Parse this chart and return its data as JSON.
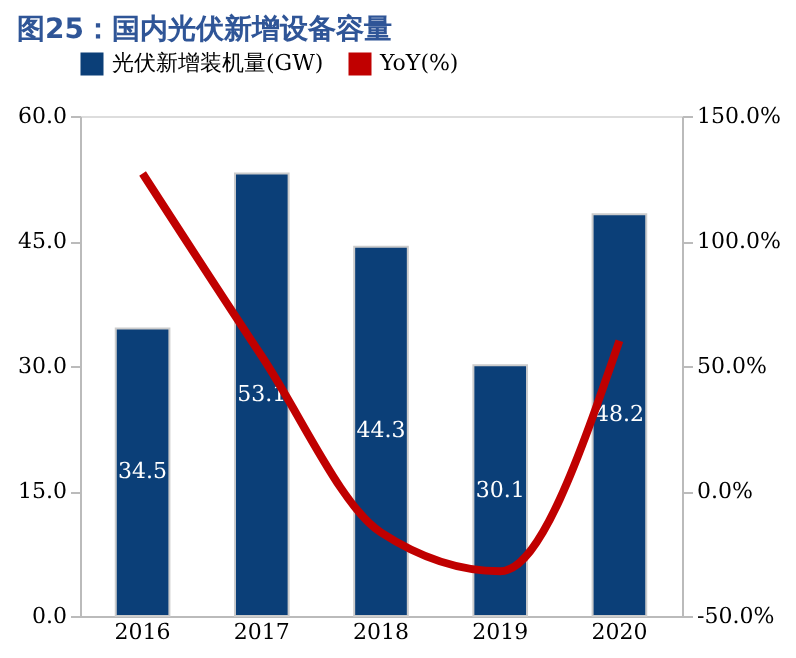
{
  "chart_data": {
    "type": "bar",
    "title": "图25：国内光伏新增设备容量",
    "categories": [
      "2016",
      "2017",
      "2018",
      "2019",
      "2020"
    ],
    "series": [
      {
        "name": "光伏新增装机量(GW)",
        "color": "#0b3f78",
        "values": [
          34.5,
          53.1,
          44.3,
          30.1,
          48.2
        ]
      },
      {
        "name": "YoY(%)",
        "type": "line",
        "axis": "y2",
        "color": "#c00000",
        "values": [
          127,
          53.9,
          -16.6,
          -32.1,
          60.1
        ]
      }
    ],
    "ylim": [
      0,
      60
    ],
    "yticks": [
      {
        "value": 0,
        "label": "0.0"
      },
      {
        "value": 15,
        "label": "15.0"
      },
      {
        "value": 30,
        "label": "30.0"
      },
      {
        "value": 45,
        "label": "45.0"
      },
      {
        "value": 60,
        "label": "60.0"
      }
    ],
    "y2lim": [
      -50,
      150
    ],
    "y2ticks": [
      {
        "value": -50,
        "label": "-50.0%"
      },
      {
        "value": 0,
        "label": "0.0%"
      },
      {
        "value": 50,
        "label": "50.0%"
      },
      {
        "value": 100,
        "label": "100.0%"
      },
      {
        "value": 150,
        "label": "150.0%"
      }
    ],
    "value_labels": [
      "34.5",
      "53.1",
      "44.3",
      "30.1",
      "48.2"
    ],
    "grid": false,
    "legend": "top"
  }
}
